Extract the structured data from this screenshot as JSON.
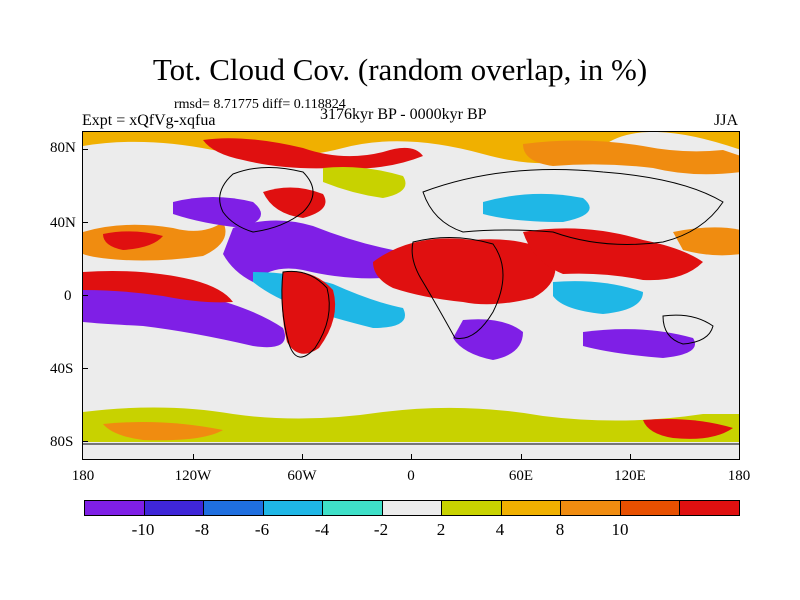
{
  "header": {
    "title": "Tot. Cloud Cov. (random overlap, in %)",
    "stats": "rmsd= 8.71775 diff= 0.118824",
    "experiment": "Expt = xQfVg-xqfua",
    "period": "3176kyr BP - 0000kyr BP",
    "season": "JJA"
  },
  "axes": {
    "lat_labels": [
      "80N",
      "40N",
      "0",
      "40S",
      "80S"
    ],
    "lon_labels": [
      "180",
      "120W",
      "60W",
      "0",
      "60E",
      "120E",
      "180"
    ]
  },
  "colorbar": {
    "colors": [
      "#7f1fe6",
      "#3f26d8",
      "#1f6fe0",
      "#1fb7e6",
      "#3fe0c8",
      "#ececec",
      "#c8d200",
      "#f0b000",
      "#f08c10",
      "#e85000",
      "#e01010"
    ],
    "labels": [
      "-10",
      "-8",
      "-6",
      "-4",
      "-2",
      "2",
      "4",
      "8",
      "10"
    ]
  },
  "map": {
    "description_colors": {
      "neutral": "#ececec",
      "coast": "#000000"
    }
  }
}
